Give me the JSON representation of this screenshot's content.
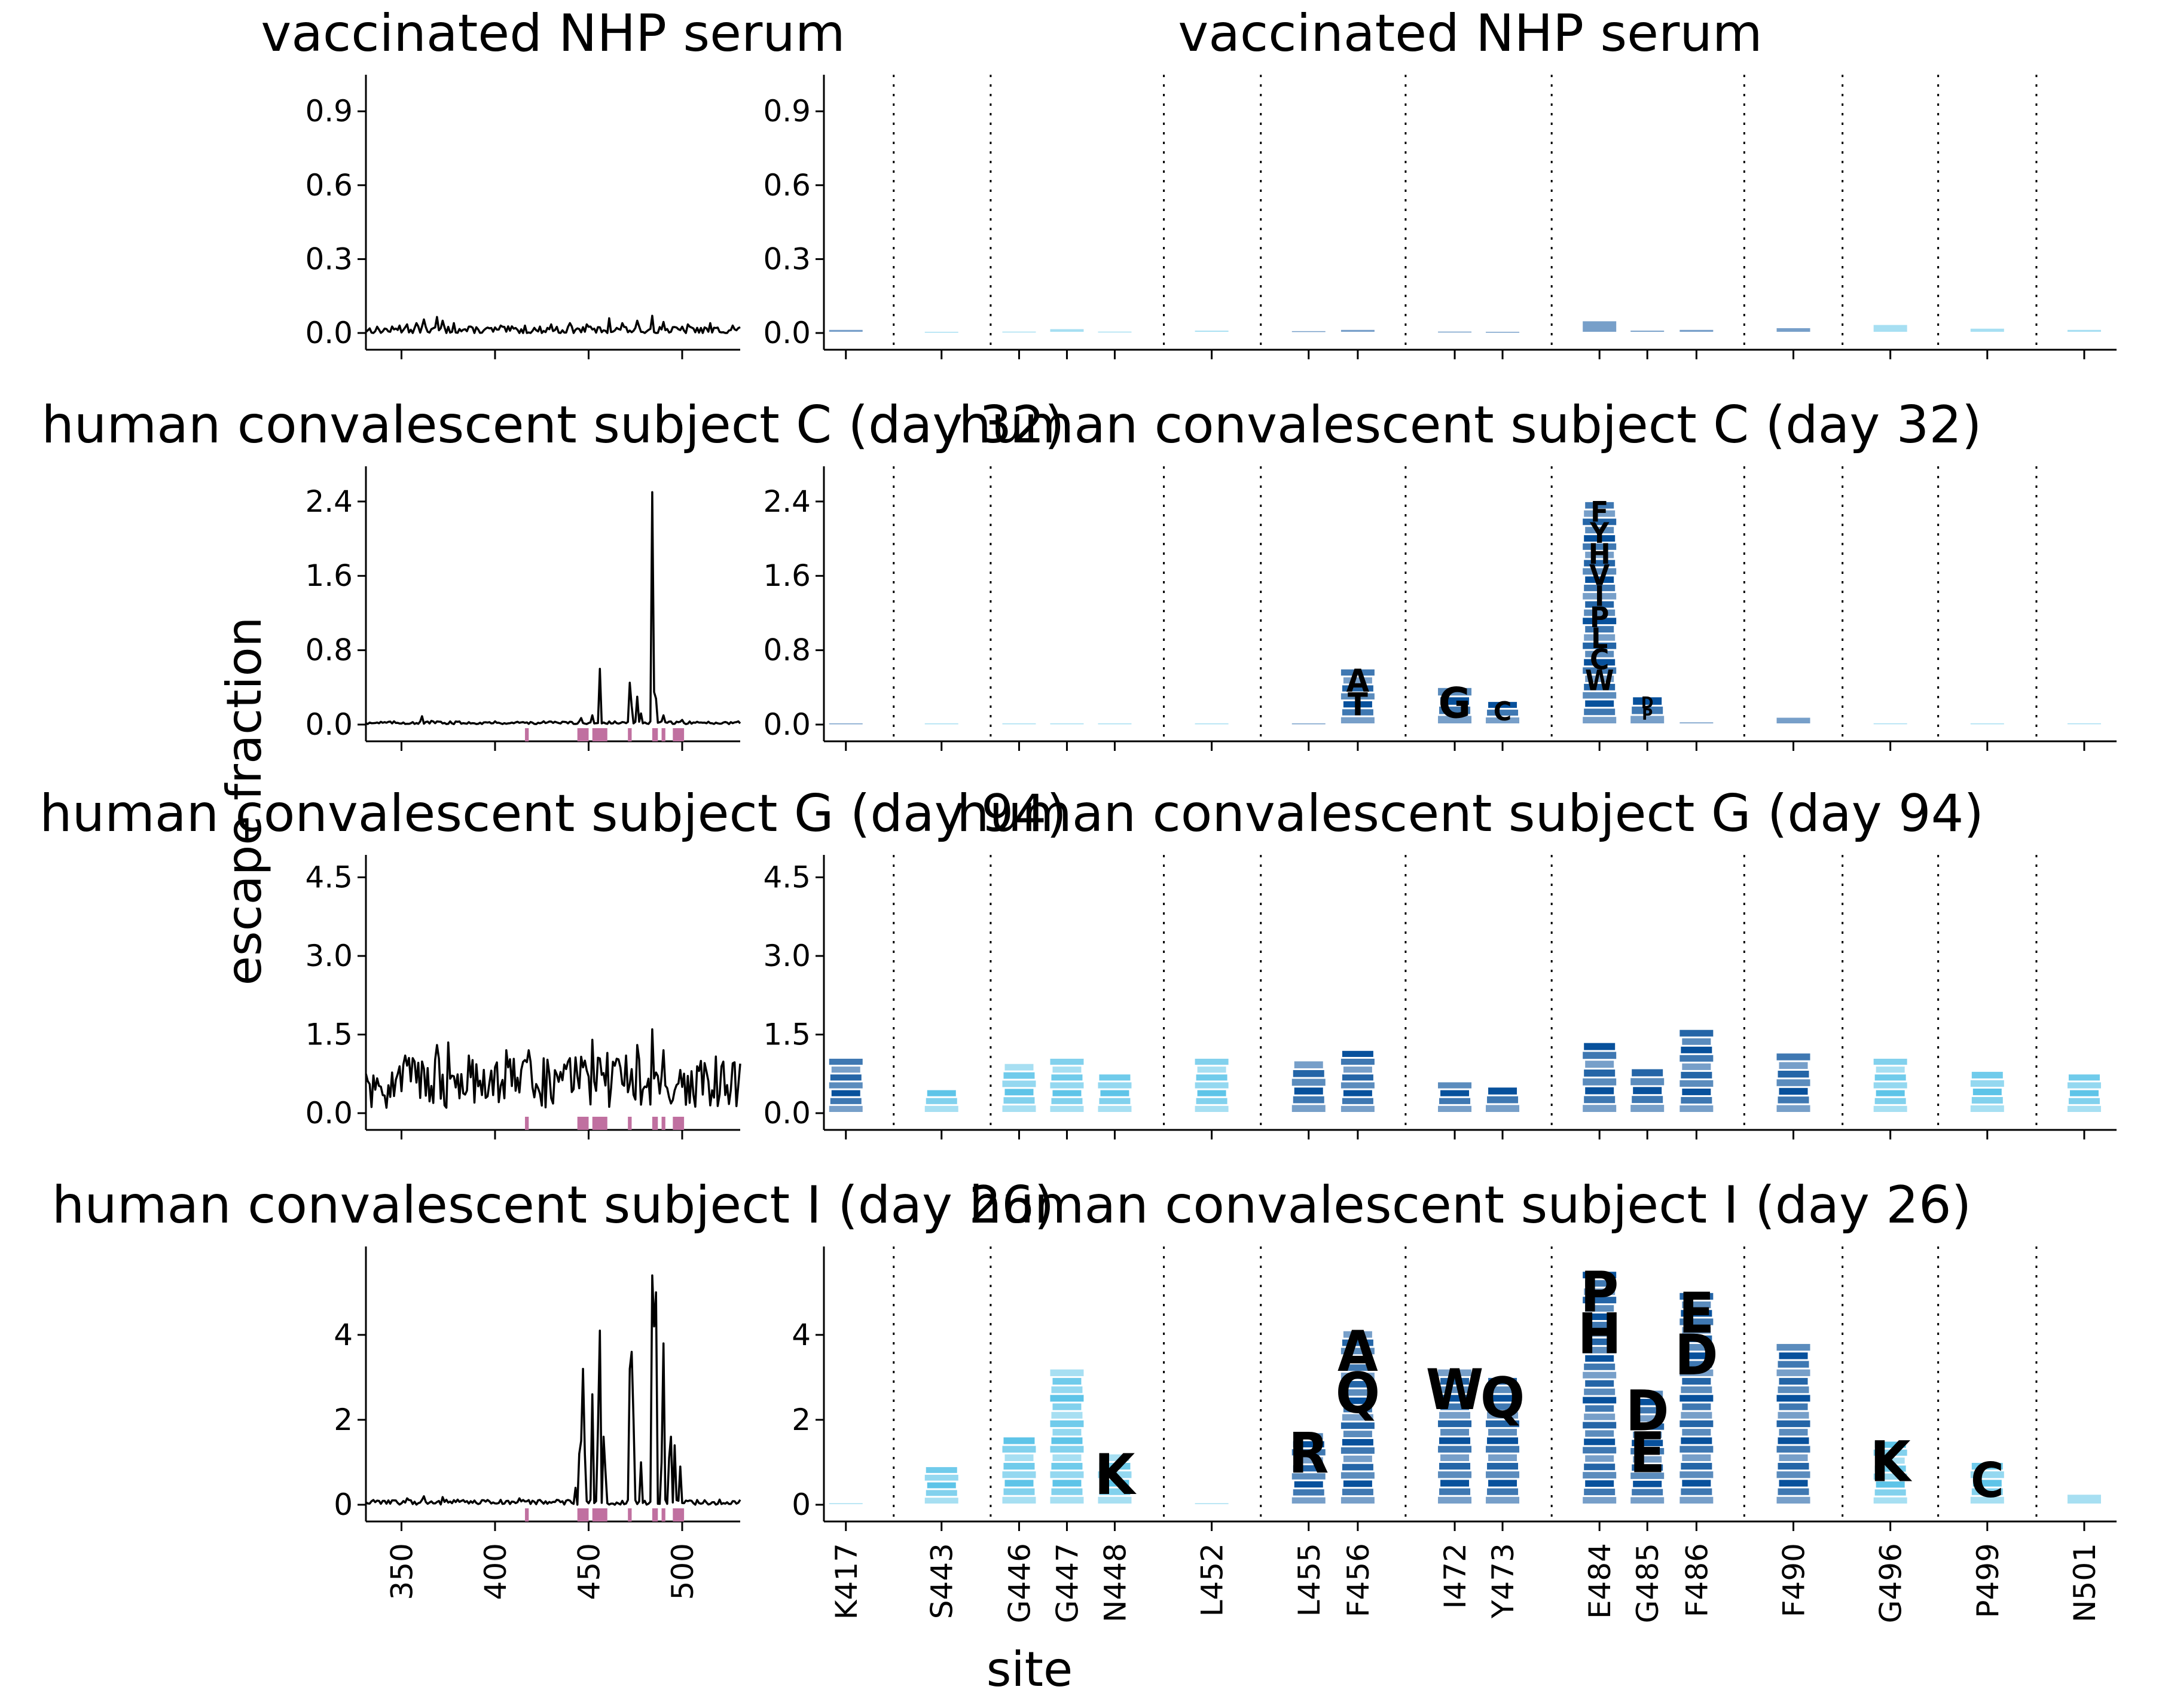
{
  "figure": {
    "ylabel": "escape fraction",
    "xlabel_right": "site",
    "colors": {
      "line": "#000000",
      "highlight": "#c070a0",
      "logo_dark": "#08519c",
      "logo_light": "#5ec4e8"
    }
  },
  "chart_data": [
    {
      "type": "line",
      "panel": "left",
      "title": "vaccinated NHP serum",
      "xlim": [
        331,
        531
      ],
      "ylim": [
        -0.02,
        1.0
      ],
      "xticks": [
        350,
        400,
        450,
        500
      ],
      "xtick_labels": [],
      "yticks": [
        0.0,
        0.3,
        0.6,
        0.9
      ],
      "ytick_labels": [
        "0.0",
        "0.3",
        "0.6",
        "0.9"
      ],
      "baseline_level": 0.012,
      "noise": 0.015,
      "peaks": [
        [
          349,
          0.03
        ],
        [
          353,
          0.035
        ],
        [
          358,
          0.04
        ],
        [
          362,
          0.055
        ],
        [
          369,
          0.065
        ],
        [
          372,
          0.05
        ],
        [
          378,
          0.04
        ],
        [
          403,
          0.03
        ],
        [
          416,
          0.03
        ],
        [
          430,
          0.035
        ],
        [
          440,
          0.04
        ],
        [
          449,
          0.035
        ],
        [
          461,
          0.06
        ],
        [
          468,
          0.04
        ],
        [
          476,
          0.05
        ],
        [
          484,
          0.07
        ],
        [
          490,
          0.045
        ],
        [
          503,
          0.035
        ],
        [
          515,
          0.04
        ],
        [
          527,
          0.03
        ]
      ],
      "highlight_sites": []
    },
    {
      "type": "logo",
      "panel": "right",
      "title": "vaccinated NHP serum",
      "ylim": [
        -0.02,
        1.0
      ],
      "yticks": [
        0.0,
        0.3,
        0.6,
        0.9
      ],
      "ytick_labels": [
        "0.0",
        "0.3",
        "0.6",
        "0.9"
      ],
      "site_labels": [],
      "bars": [
        {
          "h": 0.015,
          "letters": "",
          "shade": "dark"
        },
        {
          "h": 0.0,
          "letters": "",
          "shade": "light"
        },
        {
          "h": 0.008,
          "letters": "",
          "shade": "light"
        },
        {
          "h": 0.018,
          "letters": "",
          "shade": "light"
        },
        {
          "h": 0.008,
          "letters": "",
          "shade": "light"
        },
        {
          "h": 0.012,
          "letters": "",
          "shade": "light"
        },
        {
          "h": 0.01,
          "letters": "",
          "shade": "dark"
        },
        {
          "h": 0.015,
          "letters": "",
          "shade": "dark"
        },
        {
          "h": 0.008,
          "letters": "",
          "shade": "dark"
        },
        {
          "h": 0.006,
          "letters": "",
          "shade": "dark"
        },
        {
          "h": 0.05,
          "letters": "",
          "shade": "dark"
        },
        {
          "h": 0.012,
          "letters": "",
          "shade": "dark"
        },
        {
          "h": 0.015,
          "letters": "",
          "shade": "dark"
        },
        {
          "h": 0.022,
          "letters": "",
          "shade": "dark"
        },
        {
          "h": 0.035,
          "letters": "",
          "shade": "light"
        },
        {
          "h": 0.02,
          "letters": "",
          "shade": "light"
        },
        {
          "h": 0.015,
          "letters": "",
          "shade": "light"
        }
      ]
    },
    {
      "type": "line",
      "panel": "left",
      "title": "human convalescent subject C (day 32)",
      "xlim": [
        331,
        531
      ],
      "ylim": [
        -0.12,
        2.65
      ],
      "xticks": [
        350,
        400,
        450,
        500
      ],
      "xtick_labels": [],
      "yticks": [
        0.0,
        0.8,
        1.6,
        2.4
      ],
      "ytick_labels": [
        "0.0",
        "0.8",
        "1.6",
        "2.4"
      ],
      "baseline_level": 0.02,
      "noise": 0.015,
      "peaks": [
        [
          361,
          0.09
        ],
        [
          366,
          0.04
        ],
        [
          446,
          0.07
        ],
        [
          452,
          0.1
        ],
        [
          456,
          0.6
        ],
        [
          472,
          0.45
        ],
        [
          473,
          0.2
        ],
        [
          476,
          0.3
        ],
        [
          478,
          0.12
        ],
        [
          484,
          2.5
        ],
        [
          485,
          0.35
        ],
        [
          486,
          0.28
        ],
        [
          490,
          0.1
        ],
        [
          500,
          0.05
        ]
      ],
      "highlight_sites": [
        [
          416,
          418
        ],
        [
          444,
          450
        ],
        [
          452,
          460
        ],
        [
          471,
          473
        ],
        [
          484,
          487
        ],
        [
          489,
          491
        ],
        [
          495,
          501
        ]
      ]
    },
    {
      "type": "logo",
      "panel": "right",
      "title": "human convalescent subject C (day 32)",
      "ylim": [
        -0.12,
        2.65
      ],
      "yticks": [
        0.0,
        0.8,
        1.6,
        2.4
      ],
      "ytick_labels": [
        "0.0",
        "0.8",
        "1.6",
        "2.4"
      ],
      "site_labels": [],
      "bars": [
        {
          "h": 0.01,
          "letters": "",
          "shade": "dark"
        },
        {
          "h": 0.0,
          "letters": "",
          "shade": "light"
        },
        {
          "h": 0.01,
          "letters": "",
          "shade": "light"
        },
        {
          "h": 0.01,
          "letters": "",
          "shade": "light"
        },
        {
          "h": 0.01,
          "letters": "",
          "shade": "light"
        },
        {
          "h": 0.01,
          "letters": "",
          "shade": "light"
        },
        {
          "h": 0.01,
          "letters": "",
          "shade": "dark"
        },
        {
          "h": 0.6,
          "letters": "AT",
          "shade": "dark"
        },
        {
          "h": 0.4,
          "letters": "G",
          "shade": "dark"
        },
        {
          "h": 0.25,
          "letters": "C",
          "shade": "dark"
        },
        {
          "h": 2.4,
          "letters": "FYHVIPLCW",
          "shade": "dark"
        },
        {
          "h": 0.3,
          "letters": "DP",
          "shade": "dark"
        },
        {
          "h": 0.03,
          "letters": "",
          "shade": "dark"
        },
        {
          "h": 0.08,
          "letters": "",
          "shade": "dark"
        },
        {
          "h": 0.02,
          "letters": "",
          "shade": "light"
        },
        {
          "h": 0.01,
          "letters": "",
          "shade": "light"
        },
        {
          "h": 0.02,
          "letters": "",
          "shade": "light"
        }
      ]
    },
    {
      "type": "line",
      "panel": "left",
      "title": "human convalescent subject G (day 94)",
      "xlim": [
        331,
        531
      ],
      "ylim": [
        -0.25,
        4.7
      ],
      "xticks": [
        350,
        400,
        450,
        500
      ],
      "xtick_labels": [],
      "yticks": [
        0.0,
        1.5,
        3.0,
        4.5
      ],
      "ytick_labels": [
        "0.0",
        "1.5",
        "3.0",
        "4.5"
      ],
      "baseline_level": 0.55,
      "noise": 0.5,
      "peaks": [
        [
          369,
          1.3
        ],
        [
          375,
          1.35
        ],
        [
          386,
          1.1
        ],
        [
          406,
          1.2
        ],
        [
          418,
          1.2
        ],
        [
          440,
          1.05
        ],
        [
          452,
          1.4
        ],
        [
          460,
          1.15
        ],
        [
          470,
          1.1
        ],
        [
          476,
          1.3
        ],
        [
          484,
          1.6
        ],
        [
          490,
          1.2
        ],
        [
          505,
          0.8
        ],
        [
          527,
          0.95
        ]
      ],
      "highlight_sites": [
        [
          416,
          418
        ],
        [
          444,
          450
        ],
        [
          452,
          460
        ],
        [
          471,
          473
        ],
        [
          484,
          487
        ],
        [
          489,
          491
        ],
        [
          495,
          501
        ]
      ]
    },
    {
      "type": "logo",
      "panel": "right",
      "title": "human convalescent subject G (day 94)",
      "ylim": [
        -0.25,
        4.7
      ],
      "yticks": [
        0.0,
        1.5,
        3.0,
        4.5
      ],
      "ytick_labels": [
        "0.0",
        "1.5",
        "3.0",
        "4.5"
      ],
      "site_labels": [],
      "bars": [
        {
          "h": 1.05,
          "letters": "",
          "shade": "dark"
        },
        {
          "h": 0.45,
          "letters": "",
          "shade": "light"
        },
        {
          "h": 0.95,
          "letters": "",
          "shade": "light"
        },
        {
          "h": 1.05,
          "letters": "",
          "shade": "light"
        },
        {
          "h": 0.75,
          "letters": "",
          "shade": "light"
        },
        {
          "h": 1.05,
          "letters": "",
          "shade": "light"
        },
        {
          "h": 1.0,
          "letters": "",
          "shade": "dark"
        },
        {
          "h": 1.2,
          "letters": "",
          "shade": "dark"
        },
        {
          "h": 0.6,
          "letters": "",
          "shade": "dark"
        },
        {
          "h": 0.5,
          "letters": "",
          "shade": "dark"
        },
        {
          "h": 1.35,
          "letters": "",
          "shade": "dark"
        },
        {
          "h": 0.85,
          "letters": "",
          "shade": "dark"
        },
        {
          "h": 1.6,
          "letters": "",
          "shade": "dark"
        },
        {
          "h": 1.15,
          "letters": "",
          "shade": "dark"
        },
        {
          "h": 1.05,
          "letters": "",
          "shade": "light"
        },
        {
          "h": 0.8,
          "letters": "",
          "shade": "light"
        },
        {
          "h": 0.75,
          "letters": "",
          "shade": "light"
        }
      ]
    },
    {
      "type": "line",
      "panel": "left",
      "title": "human convalescent subject I (day 26)",
      "xlim": [
        331,
        531
      ],
      "ylim": [
        -0.35,
        5.8
      ],
      "xticks": [
        350,
        400,
        450,
        500
      ],
      "xtick_labels": [
        "350",
        "400",
        "450",
        "500"
      ],
      "yticks": [
        0,
        2,
        4
      ],
      "ytick_labels": [
        "0",
        "2",
        "4"
      ],
      "baseline_level": 0.06,
      "noise": 0.06,
      "peaks": [
        [
          353,
          0.15
        ],
        [
          362,
          0.2
        ],
        [
          372,
          0.18
        ],
        [
          380,
          0.12
        ],
        [
          413,
          0.15
        ],
        [
          443,
          0.4
        ],
        [
          445,
          1.2
        ],
        [
          446,
          1.5
        ],
        [
          447,
          3.2
        ],
        [
          448,
          1.2
        ],
        [
          452,
          2.6
        ],
        [
          455,
          1.8
        ],
        [
          456,
          4.1
        ],
        [
          458,
          1.6
        ],
        [
          459,
          0.8
        ],
        [
          472,
          3.2
        ],
        [
          473,
          3.6
        ],
        [
          474,
          2.0
        ],
        [
          478,
          1.0
        ],
        [
          484,
          5.4
        ],
        [
          485,
          4.2
        ],
        [
          486,
          5.0
        ],
        [
          489,
          1.0
        ],
        [
          490,
          3.8
        ],
        [
          493,
          1.1
        ],
        [
          494,
          1.6
        ],
        [
          496,
          1.4
        ],
        [
          499,
          0.9
        ],
        [
          520,
          0.12
        ]
      ],
      "highlight_sites": [
        [
          416,
          418
        ],
        [
          444,
          450
        ],
        [
          452,
          460
        ],
        [
          471,
          473
        ],
        [
          484,
          487
        ],
        [
          489,
          491
        ],
        [
          495,
          501
        ]
      ]
    },
    {
      "type": "logo",
      "panel": "right",
      "title": "human convalescent subject I (day 26)",
      "ylim": [
        -0.35,
        5.8
      ],
      "yticks": [
        0,
        2,
        4
      ],
      "ytick_labels": [
        "0",
        "2",
        "4"
      ],
      "site_labels": [
        "K417",
        "S443",
        "G446",
        "G447",
        "N448",
        "L452",
        "L455",
        "F456",
        "I472",
        "Y473",
        "E484",
        "G485",
        "F486",
        "F490",
        "G496",
        "P499",
        "N501"
      ],
      "bars": [
        {
          "h": 0.05,
          "letters": "",
          "shade": "light"
        },
        {
          "h": 0.9,
          "letters": "",
          "shade": "light"
        },
        {
          "h": 1.6,
          "letters": "",
          "shade": "light"
        },
        {
          "h": 3.2,
          "letters": "",
          "shade": "light"
        },
        {
          "h": 1.2,
          "letters": "K",
          "shade": "light"
        },
        {
          "h": 0.05,
          "letters": "",
          "shade": "light"
        },
        {
          "h": 1.7,
          "letters": "R",
          "shade": "dark"
        },
        {
          "h": 4.1,
          "letters": "AQ",
          "shade": "dark"
        },
        {
          "h": 3.2,
          "letters": "W",
          "shade": "dark"
        },
        {
          "h": 3.0,
          "letters": "Q",
          "shade": "dark"
        },
        {
          "h": 5.5,
          "letters": "PH",
          "shade": "dark"
        },
        {
          "h": 2.7,
          "letters": "DE",
          "shade": "dark"
        },
        {
          "h": 5.0,
          "letters": "ED",
          "shade": "dark"
        },
        {
          "h": 3.8,
          "letters": "",
          "shade": "dark"
        },
        {
          "h": 1.5,
          "letters": "K",
          "shade": "light"
        },
        {
          "h": 1.0,
          "letters": "C",
          "shade": "light"
        },
        {
          "h": 0.25,
          "letters": "",
          "shade": "light"
        }
      ]
    }
  ]
}
